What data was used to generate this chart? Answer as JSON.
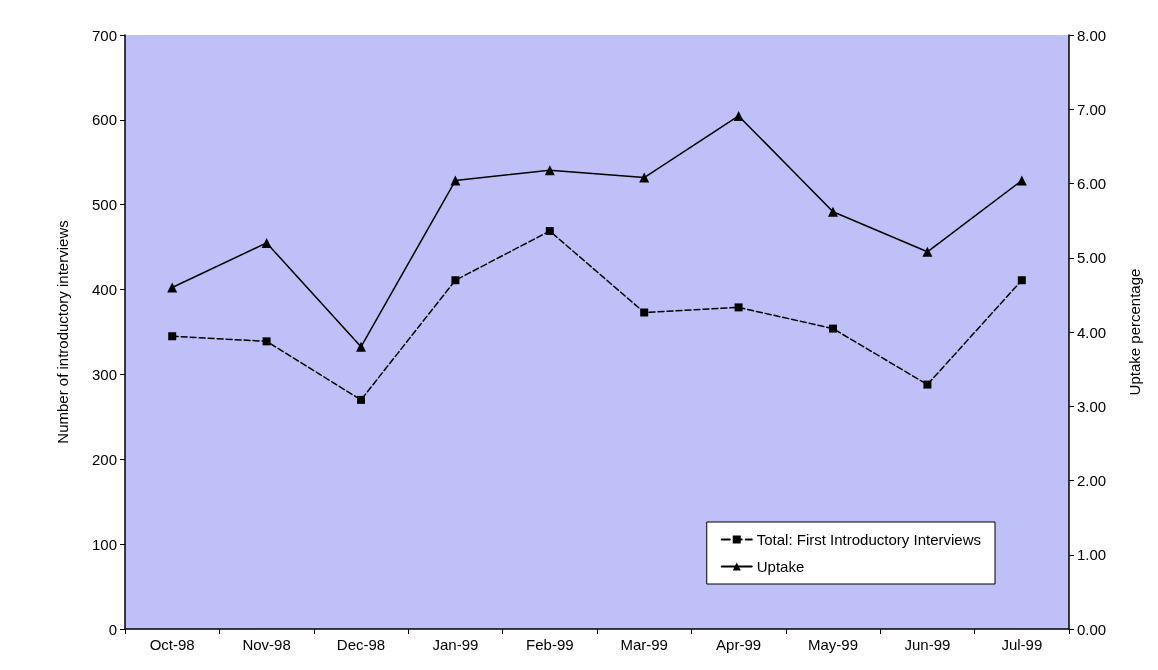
{
  "chart_data": {
    "type": "line",
    "ylabel": "Number of introductory interviews",
    "y2label": "Uptake percentage",
    "categories": [
      "Oct-98",
      "Nov-98",
      "Dec-98",
      "Jan-99",
      "Feb-99",
      "Mar-99",
      "Apr-99",
      "May-99",
      "Jun-99",
      "Jul-99"
    ],
    "series": [
      {
        "name": "Total: First Introductory Interviews",
        "color": "#000000",
        "marker": "square",
        "line_style": "dashed",
        "values": [
          345,
          339,
          270,
          411,
          469,
          373,
          379,
          354,
          288,
          411
        ]
      },
      {
        "name": "Uptake",
        "color": "#000000",
        "marker": "triangle",
        "line_style": "solid",
        "axis": "y2",
        "values": [
          4.6,
          5.2,
          3.8,
          6.04,
          6.18,
          6.08,
          6.91,
          5.62,
          5.08,
          6.04
        ]
      }
    ],
    "ylim": [
      0,
      700
    ],
    "yticks": [
      0,
      100,
      200,
      300,
      400,
      500,
      600,
      700
    ],
    "y2lim": [
      0,
      8
    ],
    "y2ticks": [
      {
        "value": 0,
        "label": "0.00"
      },
      {
        "value": 1,
        "label": "1.00"
      },
      {
        "value": 2,
        "label": "2.00"
      },
      {
        "value": 3,
        "label": "3.00"
      },
      {
        "value": 4,
        "label": "4.00"
      },
      {
        "value": 5,
        "label": "5.00"
      },
      {
        "value": 6,
        "label": "6.00"
      },
      {
        "value": 7,
        "label": "7.00"
      },
      {
        "value": 8,
        "label": "8.00"
      }
    ],
    "grid": false,
    "legend": "bottom right"
  }
}
